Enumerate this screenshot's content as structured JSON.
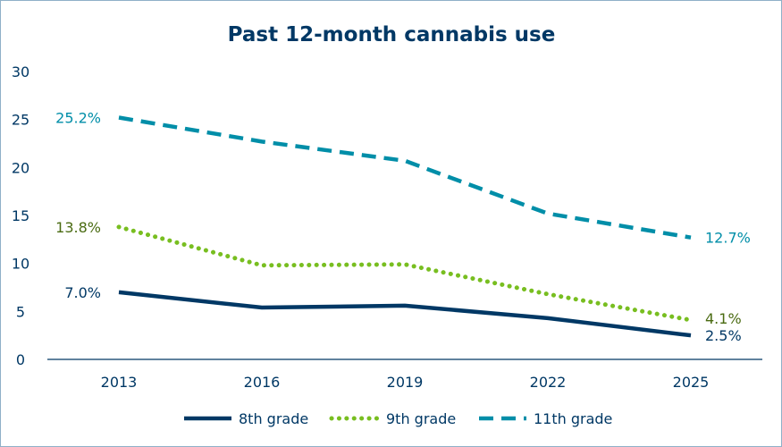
{
  "chart_data": {
    "type": "line",
    "title": "Past 12-month cannabis use",
    "x": [
      "2013",
      "2016",
      "2019",
      "2022",
      "2025"
    ],
    "ylim": [
      0,
      30
    ],
    "yticks": [
      0,
      5,
      10,
      15,
      20,
      25,
      30
    ],
    "grid": false,
    "legend_placement": "bottom",
    "series": [
      {
        "name": "8th grade",
        "values": [
          7.0,
          5.4,
          5.6,
          4.3,
          2.5
        ],
        "color": "#003865",
        "style": "solid",
        "labels": {
          "first": "7.0%",
          "last": "2.5%"
        },
        "label_color": "#003865"
      },
      {
        "name": "9th grade",
        "values": [
          13.8,
          9.8,
          9.9,
          6.8,
          4.1
        ],
        "color": "#78be20",
        "style": "dotted",
        "labels": {
          "first": "13.8%",
          "last": "4.1%"
        },
        "label_color": "#4a6b12"
      },
      {
        "name": "11th grade",
        "values": [
          25.2,
          22.7,
          20.7,
          15.2,
          12.7
        ],
        "color": "#008ea8",
        "style": "dashed",
        "labels": {
          "first": "25.2%",
          "last": "12.7%"
        },
        "label_color": "#008ea8"
      }
    ]
  }
}
